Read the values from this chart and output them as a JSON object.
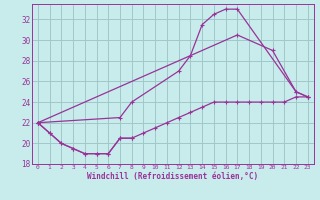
{
  "xlabel": "Windchill (Refroidissement éolien,°C)",
  "background_color": "#c8ecec",
  "grid_color": "#a0c8c8",
  "line_color": "#993399",
  "xlim": [
    -0.5,
    23.5
  ],
  "ylim": [
    18,
    33.5
  ],
  "yticks": [
    18,
    20,
    22,
    24,
    26,
    28,
    30,
    32
  ],
  "xticks": [
    0,
    1,
    2,
    3,
    4,
    5,
    6,
    7,
    8,
    9,
    10,
    11,
    12,
    13,
    14,
    15,
    16,
    17,
    18,
    19,
    20,
    21,
    22,
    23
  ],
  "curve1_x": [
    0,
    1,
    2,
    3,
    4,
    5,
    6,
    7,
    8
  ],
  "curve1_y": [
    22.0,
    21.0,
    20.0,
    19.5,
    19.0,
    19.0,
    19.0,
    20.5,
    20.5
  ],
  "curve2_x": [
    0,
    7,
    8,
    12,
    13,
    14,
    15,
    16,
    17,
    22,
    23
  ],
  "curve2_y": [
    22.0,
    22.5,
    24.0,
    27.0,
    28.5,
    31.5,
    32.5,
    33.0,
    33.0,
    25.0,
    24.5
  ],
  "curve3_x": [
    0,
    17,
    20,
    22,
    23
  ],
  "curve3_y": [
    22.0,
    30.5,
    29.0,
    25.0,
    24.5
  ],
  "curve4_x": [
    0,
    1,
    2,
    3,
    4,
    5,
    6,
    7,
    8,
    9,
    10,
    11,
    12,
    13,
    14,
    15,
    16,
    17,
    18,
    19,
    20,
    21,
    22,
    23
  ],
  "curve4_y": [
    22.0,
    21.0,
    20.0,
    19.5,
    19.0,
    19.0,
    19.0,
    20.5,
    20.5,
    21.0,
    21.5,
    22.0,
    22.5,
    23.0,
    23.5,
    24.0,
    24.0,
    24.0,
    24.0,
    24.0,
    24.0,
    24.0,
    24.5,
    24.5
  ]
}
